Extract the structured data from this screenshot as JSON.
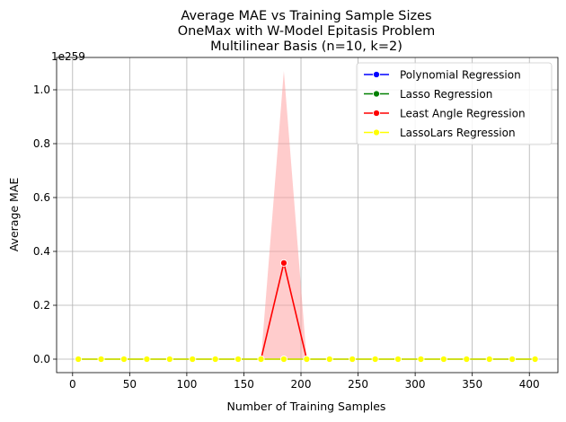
{
  "chart_data": {
    "type": "line",
    "title_lines": [
      "Average MAE vs Training Sample Sizes",
      "OneMax with W-Model Epitasis Problem",
      "Multilinear Basis (n=10, k=2)"
    ],
    "xlabel": "Number of Training Samples",
    "ylabel": "Average MAE",
    "y_offset_label": "1e259",
    "xlim": [
      -14,
      425
    ],
    "ylim": [
      -0.05,
      1.12
    ],
    "xticks": [
      0,
      50,
      100,
      150,
      200,
      250,
      300,
      350,
      400
    ],
    "xtick_labels": [
      "0",
      "50",
      "100",
      "150",
      "200",
      "250",
      "300",
      "350",
      "400"
    ],
    "yticks": [
      0.0,
      0.2,
      0.4,
      0.6,
      0.8,
      1.0
    ],
    "ytick_labels": [
      "0.0",
      "0.2",
      "0.4",
      "0.6",
      "0.8",
      "1.0"
    ],
    "grid": true,
    "legend_position": "upper right",
    "x": [
      5,
      25,
      45,
      65,
      85,
      105,
      125,
      145,
      165,
      185,
      205,
      225,
      245,
      265,
      285,
      305,
      325,
      345,
      365,
      385,
      405
    ],
    "series": [
      {
        "name": "Polynomial Regression",
        "color": "#0000ff",
        "values": [
          0,
          0,
          0,
          0,
          0,
          0,
          0,
          0,
          0,
          0,
          0,
          0,
          0,
          0,
          0,
          0,
          0,
          0,
          0,
          0,
          0
        ]
      },
      {
        "name": "Lasso Regression",
        "color": "#008000",
        "values": [
          0,
          0,
          0,
          0,
          0,
          0,
          0,
          0,
          0,
          0,
          0,
          0,
          0,
          0,
          0,
          0,
          0,
          0,
          0,
          0,
          0
        ]
      },
      {
        "name": "Least Angle Regression",
        "color": "#ff0000",
        "values": [
          0,
          0,
          0,
          0,
          0,
          0,
          0,
          0,
          0,
          0.357,
          0,
          0,
          0,
          0,
          0,
          0,
          0,
          0,
          0,
          0,
          0
        ],
        "band_upper": [
          0,
          0,
          0,
          0,
          0,
          0,
          0,
          0,
          0,
          1.07,
          0,
          0,
          0,
          0,
          0,
          0,
          0,
          0,
          0,
          0,
          0
        ],
        "band_lower": [
          0,
          0,
          0,
          0,
          0,
          0,
          0,
          0,
          0,
          0,
          0,
          0,
          0,
          0,
          0,
          0,
          0,
          0,
          0,
          0,
          0
        ],
        "band_color": "#ff9999"
      },
      {
        "name": "LassoLars Regression",
        "color": "#ffff00",
        "values": [
          0,
          0,
          0,
          0,
          0,
          0,
          0,
          0,
          0,
          0,
          0,
          0,
          0,
          0,
          0,
          0,
          0,
          0,
          0,
          0,
          0
        ]
      }
    ]
  }
}
